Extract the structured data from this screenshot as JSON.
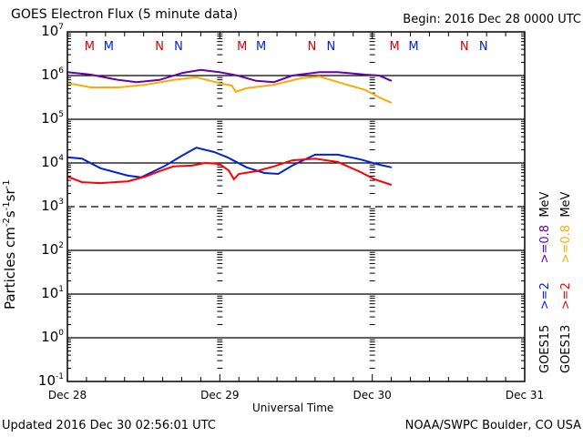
{
  "header": {
    "title": "GOES Electron Flux (5 minute data)",
    "begin": "Begin: 2016 Dec 28 0000 UTC"
  },
  "footer": {
    "updated": "Updated 2016 Dec 30 02:56:01 UTC",
    "credit": "NOAA/SWPC Boulder, CO USA"
  },
  "colors": {
    "goes15_08": "#6600aa",
    "goes13_08": "#ffaa00",
    "goes15_2": "#0022dd",
    "goes13_2": "#ff0000",
    "M_marker": "#dd0000",
    "N_marker": "#0022dd",
    "axes": "#000000"
  },
  "legend": [
    {
      "satellite": "GOES15",
      "channel": ">=2",
      "series": ">=0.8",
      "unit": "MeV",
      "channel_color": "#0022dd",
      "series_color": "#6600aa"
    },
    {
      "satellite": "GOES13",
      "channel": ">=2",
      "series": ">=0.8",
      "unit": "MeV",
      "channel_color": "#ff0000",
      "series_color": "#ffaa00"
    }
  ],
  "chart_data": {
    "type": "line",
    "title": "GOES Electron Flux (5 minute data)",
    "xlabel": "Universal Time",
    "ylabel": "Particles cm-2 s-1 sr-1",
    "yscale": "log",
    "ylim_exp": [
      -1,
      7
    ],
    "xlim_hours": [
      0,
      72
    ],
    "xticks": [
      {
        "hour": 0,
        "label": "Dec 28"
      },
      {
        "hour": 24,
        "label": "Dec 29"
      },
      {
        "hour": 48,
        "label": "Dec 30"
      },
      {
        "hour": 72,
        "label": "Dec 31"
      }
    ],
    "yticks": [
      {
        "exp": 7,
        "label": "10",
        "sup": "7"
      },
      {
        "exp": 6,
        "label": "10",
        "sup": "6"
      },
      {
        "exp": 5,
        "label": "10",
        "sup": "5"
      },
      {
        "exp": 4,
        "label": "10",
        "sup": "4"
      },
      {
        "exp": 3,
        "label": "10",
        "sup": "3"
      },
      {
        "exp": 2,
        "label": "10",
        "sup": "2"
      },
      {
        "exp": 1,
        "label": "10",
        "sup": "1"
      },
      {
        "exp": 0,
        "label": "10",
        "sup": "0"
      },
      {
        "exp": -1,
        "label": "10",
        "sup": "-1"
      }
    ],
    "gridlines_exp": [
      6,
      5,
      4,
      2,
      1,
      0
    ],
    "threshold_exp": 3,
    "markers": [
      {
        "hour": 3.5,
        "label": "M",
        "color": "#dd0000"
      },
      {
        "hour": 6.5,
        "label": "M",
        "color": "#0022dd"
      },
      {
        "hour": 14.5,
        "label": "N",
        "color": "#dd0000"
      },
      {
        "hour": 17.5,
        "label": "N",
        "color": "#0022dd"
      },
      {
        "hour": 27.5,
        "label": "M",
        "color": "#dd0000"
      },
      {
        "hour": 30.5,
        "label": "M",
        "color": "#0022dd"
      },
      {
        "hour": 38.5,
        "label": "N",
        "color": "#dd0000"
      },
      {
        "hour": 41.5,
        "label": "N",
        "color": "#0022dd"
      },
      {
        "hour": 51.5,
        "label": "M",
        "color": "#dd0000"
      },
      {
        "hour": 54.5,
        "label": "M",
        "color": "#0022dd"
      },
      {
        "hour": 62.5,
        "label": "N",
        "color": "#dd0000"
      },
      {
        "hour": 65.5,
        "label": "N",
        "color": "#0022dd"
      }
    ],
    "series": [
      {
        "name": "GOES15 >=0.8 MeV",
        "color": "#6600aa",
        "hours": [
          0,
          3.7,
          8.0,
          10.9,
          14.5,
          18.1,
          21.0,
          23.9,
          26.8,
          29.7,
          32.5,
          35.4,
          39.7,
          42.6,
          46.9,
          49.1,
          51.0
        ],
        "log_flux": [
          6.08,
          6.02,
          5.9,
          5.85,
          5.9,
          6.06,
          6.13,
          6.08,
          6.0,
          5.88,
          5.85,
          6.0,
          6.08,
          6.08,
          6.02,
          6.0,
          5.88
        ]
      },
      {
        "name": "GOES13 >=0.8 MeV",
        "color": "#ffaa00",
        "hours": [
          0,
          3.7,
          8.0,
          12.3,
          16.7,
          20.3,
          23.9,
          25.9,
          26.5,
          28.2,
          32.5,
          36.8,
          39.7,
          42.6,
          46.9,
          49.1,
          51.0
        ],
        "log_flux": [
          5.83,
          5.73,
          5.73,
          5.79,
          5.9,
          5.96,
          5.83,
          5.77,
          5.63,
          5.71,
          5.79,
          5.94,
          5.98,
          5.85,
          5.67,
          5.5,
          5.38
        ]
      },
      {
        "name": "GOES15 >=2 MeV",
        "color": "#0022dd",
        "hours": [
          0,
          2.3,
          5.2,
          9.5,
          11.6,
          15.2,
          18.1,
          20.3,
          23.1,
          25.2,
          28.2,
          31.0,
          33.2,
          35.4,
          39.0,
          42.6,
          46.2,
          49.1,
          51.0
        ],
        "log_flux": [
          4.13,
          4.1,
          3.88,
          3.71,
          3.67,
          3.92,
          4.17,
          4.35,
          4.25,
          4.13,
          3.9,
          3.77,
          3.75,
          3.94,
          4.19,
          4.19,
          4.08,
          3.96,
          3.9
        ]
      },
      {
        "name": "GOES13 >=2 MeV",
        "color": "#ff0000",
        "hours": [
          0,
          2.3,
          5.2,
          9.5,
          12.3,
          14.5,
          16.7,
          19.6,
          21.7,
          23.9,
          25.4,
          26.2,
          27.0,
          29.7,
          32.5,
          35.4,
          39.0,
          42.6,
          46.2,
          48.3,
          51.0
        ],
        "log_flux": [
          3.69,
          3.56,
          3.54,
          3.58,
          3.69,
          3.81,
          3.92,
          3.94,
          4.0,
          3.98,
          3.83,
          3.63,
          3.75,
          3.81,
          3.92,
          4.06,
          4.1,
          4.02,
          3.79,
          3.63,
          3.5
        ]
      }
    ]
  }
}
